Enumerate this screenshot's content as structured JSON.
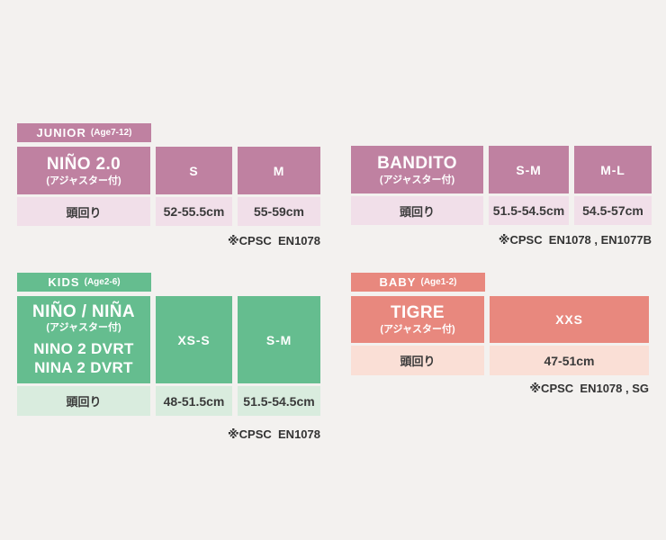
{
  "page_background": "#f3f1ef",
  "tables": {
    "junior": {
      "badge": {
        "category": "JUNIOR",
        "age_range": "(Age7-12)"
      },
      "colors": {
        "primary": "#bf81a1",
        "secondary": "#f1dfe9"
      },
      "model": {
        "name": "NIÑO 2.0",
        "adjuster_note": "(アジャスター付)"
      },
      "sizes": [
        "S",
        "M"
      ],
      "measure_label": "頭回り",
      "measurements": [
        "52-55.5cm",
        "55-59cm"
      ],
      "certification": "※CPSC  EN1078"
    },
    "bandito": {
      "colors": {
        "primary": "#bf81a1",
        "secondary": "#f1dfe9"
      },
      "model": {
        "name": "BANDITO",
        "adjuster_note": "(アジャスター付)"
      },
      "sizes": [
        "S-M",
        "M-L"
      ],
      "measure_label": "頭回り",
      "measurements": [
        "51.5-54.5cm",
        "54.5-57cm"
      ],
      "certification": "※CPSC  EN1078 , EN1077B"
    },
    "kids": {
      "badge": {
        "category": "KIDS",
        "age_range": "(Age2-6)"
      },
      "colors": {
        "primary": "#65bd8f",
        "secondary": "#d9ecde"
      },
      "model": {
        "name": "NIÑO / NIÑA",
        "adjuster_note": "(アジャスター付)",
        "variant_lines": [
          "NINO 2 DVRT",
          "NINA 2 DVRT"
        ]
      },
      "sizes": [
        "XS-S",
        "S-M"
      ],
      "measure_label": "頭回り",
      "measurements": [
        "48-51.5cm",
        "51.5-54.5cm"
      ],
      "certification": "※CPSC  EN1078"
    },
    "baby": {
      "badge": {
        "category": "BABY",
        "age_range": "(Age1-2)"
      },
      "colors": {
        "primary": "#e8887e",
        "secondary": "#fadfd6"
      },
      "model": {
        "name": "TIGRE",
        "adjuster_note": "(アジャスター付)"
      },
      "sizes": [
        "XXS"
      ],
      "measure_label": "頭回り",
      "measurements": [
        "47-51cm"
      ],
      "certification": "※CPSC  EN1078 , SG"
    }
  },
  "chart_data": [
    {
      "type": "table",
      "title": "JUNIOR (Age7-12)",
      "model": "NIÑO 2.0 (アジャスター付)",
      "columns": [
        "S",
        "M"
      ],
      "rows": [
        {
          "label": "頭回り",
          "values": [
            "52-55.5cm",
            "55-59cm"
          ]
        }
      ],
      "certifications": [
        "CPSC",
        "EN1078"
      ]
    },
    {
      "type": "table",
      "title": "BANDITO",
      "model": "BANDITO (アジャスター付)",
      "columns": [
        "S-M",
        "M-L"
      ],
      "rows": [
        {
          "label": "頭回り",
          "values": [
            "51.5-54.5cm",
            "54.5-57cm"
          ]
        }
      ],
      "certifications": [
        "CPSC",
        "EN1078",
        "EN1077B"
      ]
    },
    {
      "type": "table",
      "title": "KIDS (Age2-6)",
      "model": "NIÑO / NIÑA (アジャスター付) / NINO 2 DVRT / NINA 2 DVRT",
      "columns": [
        "XS-S",
        "S-M"
      ],
      "rows": [
        {
          "label": "頭回り",
          "values": [
            "48-51.5cm",
            "51.5-54.5cm"
          ]
        }
      ],
      "certifications": [
        "CPSC",
        "EN1078"
      ]
    },
    {
      "type": "table",
      "title": "BABY (Age1-2)",
      "model": "TIGRE (アジャスター付)",
      "columns": [
        "XXS"
      ],
      "rows": [
        {
          "label": "頭回り",
          "values": [
            "47-51cm"
          ]
        }
      ],
      "certifications": [
        "CPSC",
        "EN1078",
        "SG"
      ]
    }
  ]
}
